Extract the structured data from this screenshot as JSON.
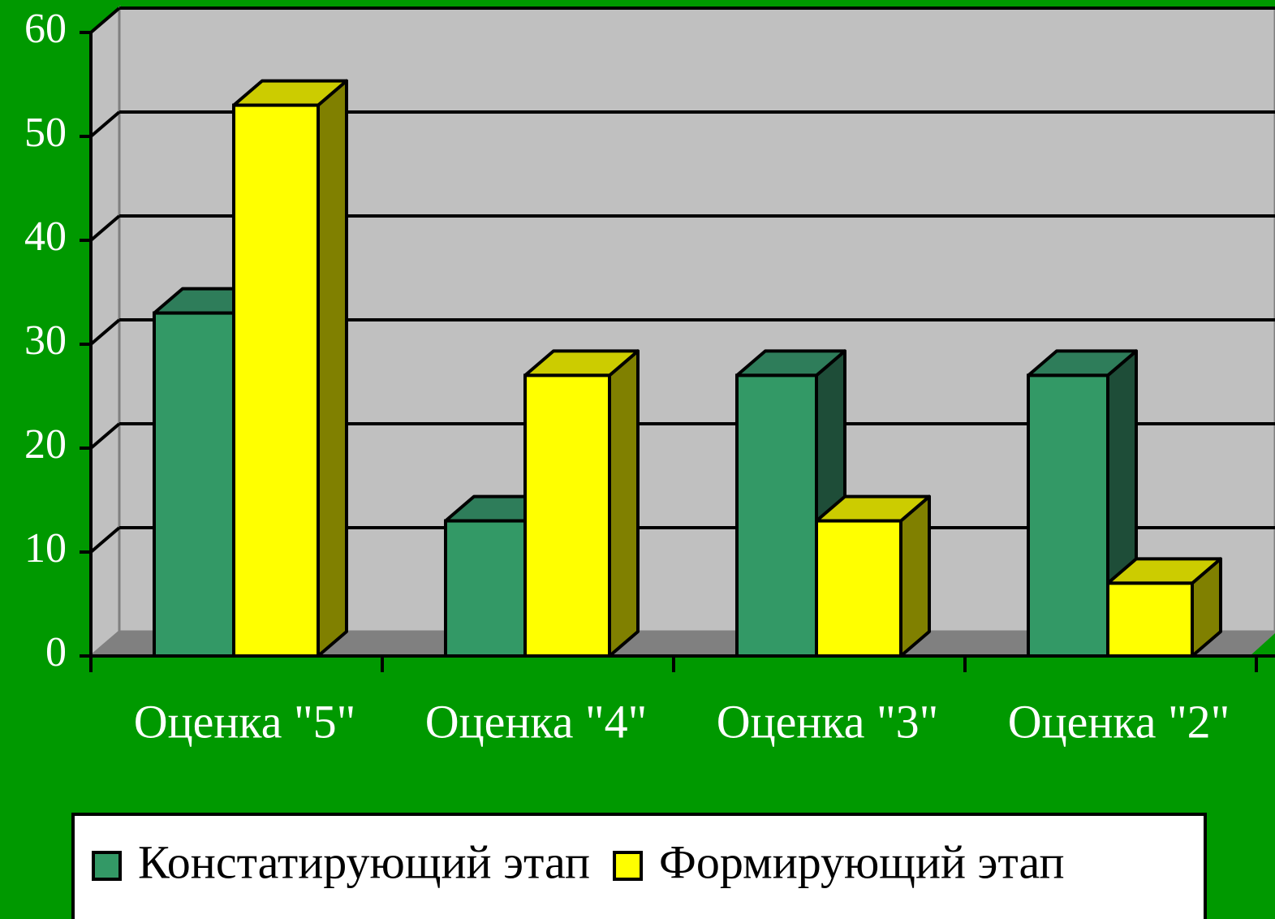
{
  "chart_data": {
    "type": "bar",
    "categories": [
      "Оценка \"5\"",
      "Оценка \"4\"",
      "Оценка \"3\"",
      "Оценка \"2\""
    ],
    "series": [
      {
        "name": "Констатирующий этап",
        "color": "#339966",
        "values": [
          33,
          13,
          27,
          27
        ]
      },
      {
        "name": "Формирующий этап",
        "color": "#ffff00",
        "values": [
          53,
          27,
          13,
          7
        ]
      }
    ],
    "ylim": [
      0,
      60
    ],
    "yticks": [
      0,
      10,
      20,
      30,
      40,
      50,
      60
    ],
    "grid": true,
    "legend": "bottom"
  }
}
